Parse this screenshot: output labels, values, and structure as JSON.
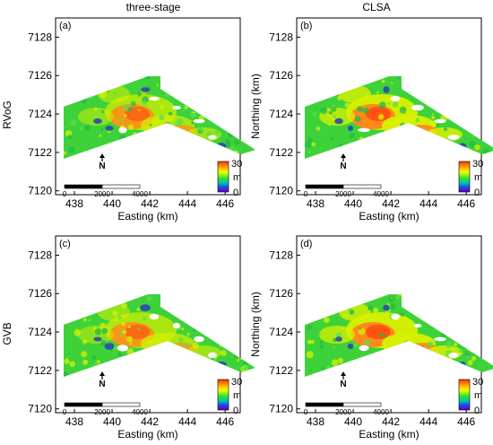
{
  "column_titles": [
    "three-stage",
    "CLSA"
  ],
  "row_labels": [
    "RVoG",
    "GVB"
  ],
  "panels": [
    {
      "label": "(a)",
      "row": 0,
      "col": 0
    },
    {
      "label": "(b)",
      "row": 0,
      "col": 1
    },
    {
      "label": "(c)",
      "row": 1,
      "col": 0
    },
    {
      "label": "(d)",
      "row": 1,
      "col": 1
    }
  ],
  "axes": {
    "xlabel": "Easting (km)",
    "ylabel": "Northing (km)",
    "xticks": [
      "438",
      "440",
      "442",
      "444",
      "446"
    ],
    "yticks": [
      "7128",
      "7126",
      "7124",
      "7122",
      "7120"
    ],
    "xlim": [
      437,
      446.8
    ],
    "ylim": [
      7119.8,
      7129
    ]
  },
  "scalebar": {
    "labels": [
      "0",
      "2000",
      "4000"
    ]
  },
  "north_arrow": {
    "label": "N"
  },
  "colorbar": {
    "max": "30",
    "unit": "m",
    "min": "0",
    "colors": [
      "#ff3000",
      "#ffb000",
      "#f0ff00",
      "#30e030",
      "#00c8a0",
      "#2040ff",
      "#7000a0"
    ]
  },
  "map_colors": {
    "green": "#3ed23a",
    "yellow": "#d8f000",
    "orange": "#ff8a1a",
    "red": "#ff4a10",
    "blue": "#2a4aa8"
  }
}
